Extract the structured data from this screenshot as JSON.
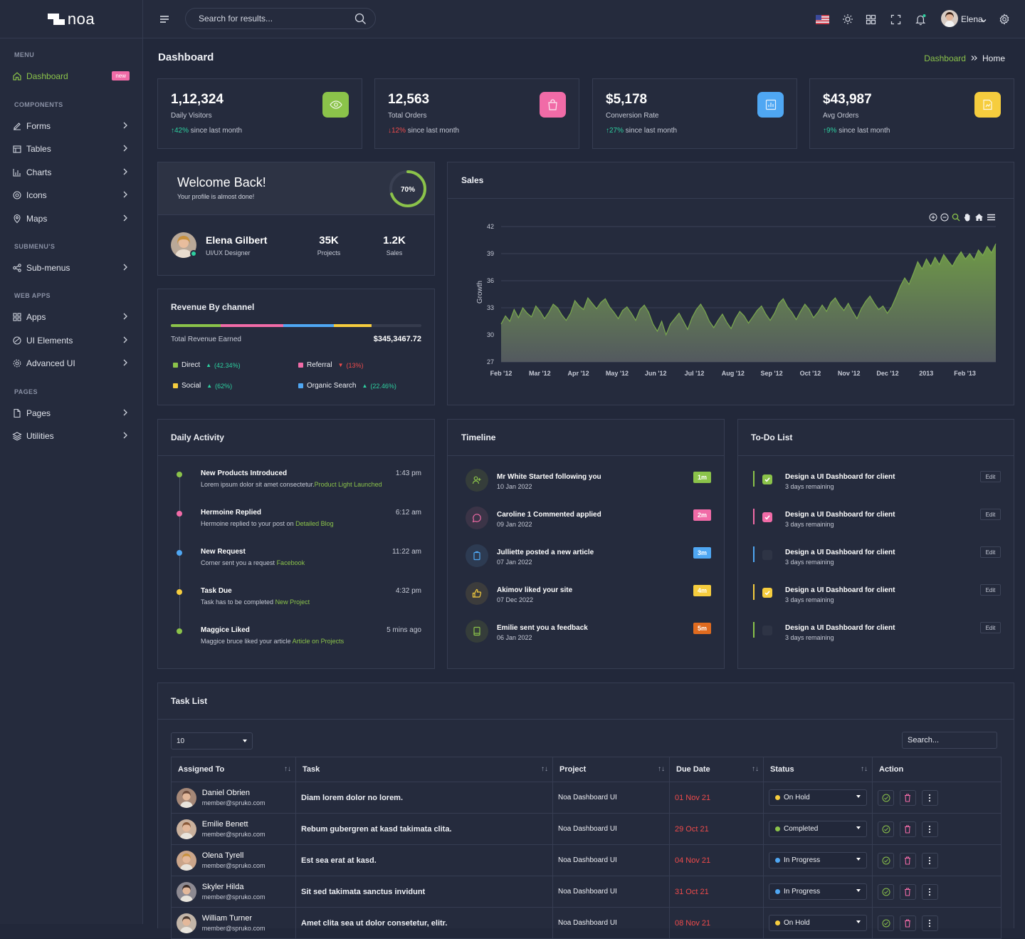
{
  "app": {
    "logo_text": "noa",
    "brand_accent": "#8bc34a"
  },
  "sidebar": {
    "categories": [
      "MENU",
      "COMPONENTS",
      "SUBMENU'S",
      "WEB APPS",
      "PAGES"
    ],
    "dashboard": {
      "label": "Dashboard",
      "badge": "new"
    },
    "components": [
      {
        "label": "Forms",
        "icon": "edit-icon"
      },
      {
        "label": "Tables",
        "icon": "table-icon"
      },
      {
        "label": "Charts",
        "icon": "bar-chart-icon"
      },
      {
        "label": "Icons",
        "icon": "icons-icon"
      },
      {
        "label": "Maps",
        "icon": "map-pin-icon"
      }
    ],
    "submenus": [
      {
        "label": "Sub-menus",
        "icon": "share-icon"
      }
    ],
    "webapps": [
      {
        "label": "Apps",
        "icon": "grid-icon"
      },
      {
        "label": "UI Elements",
        "icon": "layers-icon"
      },
      {
        "label": "Advanced UI",
        "icon": "gear-icon"
      }
    ],
    "pages": [
      {
        "label": "Pages",
        "icon": "file-icon"
      },
      {
        "label": "Utilities",
        "icon": "stack-icon"
      }
    ]
  },
  "topbar": {
    "search_placeholder": "Search for results...",
    "user_name": "Elena"
  },
  "page": {
    "title": "Dashboard",
    "breadcrumb": [
      "Dashboard",
      "Home"
    ]
  },
  "stats": [
    {
      "value": "1,12,324",
      "label": "Daily Visitors",
      "change": "42%",
      "dir": "up",
      "since": "since last month",
      "color": "#8bc34a"
    },
    {
      "value": "12,563",
      "label": "Total Orders",
      "change": "12%",
      "dir": "down",
      "since": "since last month",
      "color": "#f16ba7"
    },
    {
      "value": "$5,178",
      "label": "Conversion Rate",
      "change": "27%",
      "dir": "up",
      "since": "since last month",
      "color": "#4fa7f3"
    },
    {
      "value": "$43,987",
      "label": "Avg Orders",
      "change": "9%",
      "dir": "up",
      "since": "since last month",
      "color": "#f6cd3e"
    }
  ],
  "welcome": {
    "title": "Welcome Back!",
    "subtitle": "Your profile is almost done!",
    "progress": "70%",
    "progress_value": 70,
    "name": "Elena Gilbert",
    "role": "UI/UX Designer",
    "projects": "35K",
    "projects_label": "Projects",
    "sales": "1.2K",
    "sales_label": "Sales"
  },
  "revenue": {
    "title": "Revenue By channel",
    "total_label": "Total Revenue Earned",
    "total": "$345,3467.72",
    "segments": [
      {
        "label": "Direct",
        "pct": "(42.34%)",
        "dir": "up",
        "color": "#8bc34a"
      },
      {
        "label": "Referral",
        "pct": "(13%)",
        "dir": "down",
        "color": "#f16ba7"
      },
      {
        "label": "Social",
        "pct": "(62%)",
        "dir": "up",
        "color": "#f6cd3e"
      },
      {
        "label": "Organic Search",
        "pct": "(22.46%)",
        "dir": "up",
        "color": "#4fa7f3"
      }
    ]
  },
  "sales": {
    "title": "Sales"
  },
  "chart_data": {
    "type": "area",
    "title": "",
    "ylabel": "Growth",
    "ylim": [
      27,
      42
    ],
    "yticks": [
      27,
      30,
      33,
      36,
      39,
      42
    ],
    "xticks": [
      "Feb '12",
      "Mar '12",
      "Apr '12",
      "May '12",
      "Jun '12",
      "Jul '12",
      "Aug '12",
      "Sep '12",
      "Oct '12",
      "Nov '12",
      "Dec '12",
      "2013",
      "Feb '13"
    ],
    "series": [
      {
        "values": [
          31.2,
          32.1,
          31.5,
          32.8,
          31.9,
          33.0,
          32.4,
          32.0,
          33.2,
          32.6,
          31.8,
          32.5,
          33.4,
          33.0,
          32.2,
          31.6,
          32.4,
          33.8,
          33.2,
          32.8,
          34.1,
          33.5,
          32.9,
          33.6,
          34.0,
          33.1,
          32.5,
          31.8,
          32.7,
          33.1,
          32.4,
          31.6,
          32.8,
          33.3,
          32.5,
          31.2,
          30.4,
          31.5,
          30.0,
          31.2,
          31.8,
          32.4,
          31.5,
          30.6,
          31.9,
          32.8,
          33.4,
          32.6,
          31.5,
          30.8,
          31.6,
          32.3,
          31.4,
          30.7,
          31.8,
          32.6,
          32.1,
          31.3,
          32.0,
          32.7,
          33.2,
          32.3,
          31.6,
          32.4,
          33.5,
          34.0,
          33.1,
          32.5,
          31.7,
          32.6,
          33.4,
          32.8,
          31.9,
          32.5,
          33.3,
          32.6,
          33.6,
          34.1,
          33.3,
          32.7,
          33.5,
          32.6,
          31.8,
          32.9,
          33.7,
          34.3,
          33.5,
          32.8,
          33.2,
          32.4,
          33.1,
          34.2,
          35.4,
          36.3,
          35.6,
          36.8,
          38.1,
          37.3,
          38.4,
          37.6,
          38.6,
          37.8,
          38.9,
          38.2,
          37.6,
          38.5,
          39.2,
          38.4,
          39.0,
          38.3,
          39.4,
          38.8,
          39.8,
          39.1,
          40.1
        ]
      }
    ]
  },
  "activity": {
    "title": "Daily Activity",
    "items": [
      {
        "title": "New Products Introduced",
        "time": "1:43 pm",
        "text": "Lorem ipsum dolor sit amet consectetur.",
        "link": "Product Light Launched",
        "color": "#8bc34a"
      },
      {
        "title": "Hermoine Replied",
        "time": "6:12 am",
        "text": "Hermoine replied to your post on ",
        "link": "Detailed Blog",
        "color": "#f16ba7"
      },
      {
        "title": "New Request",
        "time": "11:22 am",
        "text": "Corner sent you a request ",
        "link": "Facebook",
        "color": "#4fa7f3"
      },
      {
        "title": "Task Due",
        "time": "4:32 pm",
        "text": "Task has to be completed ",
        "link": "New Project",
        "color": "#f6cd3e"
      },
      {
        "title": "Maggice Liked",
        "time": "5 mins ago",
        "text": "Maggice bruce liked your article ",
        "link": "Article on Projects",
        "color": "#8bc34a"
      }
    ]
  },
  "timeline": {
    "title": "Timeline",
    "items": [
      {
        "title": "Mr White Started following you",
        "date": "10 Jan 2022",
        "badge": "1m",
        "color": "#8bc34a",
        "bg": "#353d3a",
        "icon": "user-plus-icon"
      },
      {
        "title": "Caroline 1 Commented applied",
        "date": "09 Jan 2022",
        "badge": "2m",
        "color": "#f16ba7",
        "bg": "#3b3447",
        "icon": "comment-icon"
      },
      {
        "title": "Julliette posted a new article",
        "date": "07 Jan 2022",
        "badge": "3m",
        "color": "#4fa7f3",
        "bg": "#2d3b52",
        "icon": "clipboard-icon"
      },
      {
        "title": "Akimov liked your site",
        "date": "07 Dec 2022",
        "badge": "4m",
        "color": "#f6cd3e",
        "bg": "#3c3c3c",
        "icon": "thumbs-up-icon"
      },
      {
        "title": "Emilie sent you a feedback",
        "date": "06 Jan 2022",
        "badge": "5m",
        "color": "#e06b1f",
        "bg": "#353d3a",
        "icon": "tablet-icon",
        "icon_color": "#8bc34a"
      }
    ]
  },
  "todo": {
    "title": "To-Do List",
    "edit_label": "Edit",
    "items": [
      {
        "title": "Design a UI Dashboard for client",
        "sub": "3 days remaining",
        "color": "#8bc34a",
        "checked": true
      },
      {
        "title": "Design a UI Dashboard for client",
        "sub": "3 days remaining",
        "color": "#f16ba7",
        "checked": true
      },
      {
        "title": "Design a UI Dashboard for client",
        "sub": "3 days remaining",
        "color": "#4fa7f3",
        "checked": false
      },
      {
        "title": "Design a UI Dashboard for client",
        "sub": "3 days remaining",
        "color": "#f6cd3e",
        "checked": true
      },
      {
        "title": "Design a UI Dashboard for client",
        "sub": "3 days remaining",
        "color": "#8bc34a",
        "checked": false
      }
    ]
  },
  "tasks": {
    "title": "Task List",
    "page_size": "10",
    "search_placeholder": "Search...",
    "columns": [
      "Assigned To",
      "Task",
      "Project",
      "Due Date",
      "Status",
      "Action"
    ],
    "rows": [
      {
        "name": "Daniel Obrien",
        "email": "member@spruko.com",
        "task": "Diam lorem dolor no lorem.",
        "project": "Noa Dashboard UI",
        "due": "01 Nov 21",
        "status": "On Hold",
        "status_color": "#f6cd3e"
      },
      {
        "name": "Emilie Benett",
        "email": "member@spruko.com",
        "task": "Rebum gubergren at kasd takimata clita.",
        "project": "Noa Dashboard UI",
        "due": "29 Oct 21",
        "status": "Completed",
        "status_color": "#8bc34a"
      },
      {
        "name": "Olena Tyrell",
        "email": "member@spruko.com",
        "task": "Est sea erat at kasd.",
        "project": "Noa Dashboard UI",
        "due": "04 Nov 21",
        "status": "In Progress",
        "status_color": "#4fa7f3"
      },
      {
        "name": "Skyler Hilda",
        "email": "member@spruko.com",
        "task": "Sit sed takimata sanctus invidunt",
        "project": "Noa Dashboard UI",
        "due": "31 Oct 21",
        "status": "In Progress",
        "status_color": "#4fa7f3"
      },
      {
        "name": "William Turner",
        "email": "member@spruko.com",
        "task": "Amet clita sea ut dolor consetetur, elitr.",
        "project": "Noa Dashboard UI",
        "due": "08 Nov 21",
        "status": "On Hold",
        "status_color": "#f6cd3e"
      }
    ]
  }
}
